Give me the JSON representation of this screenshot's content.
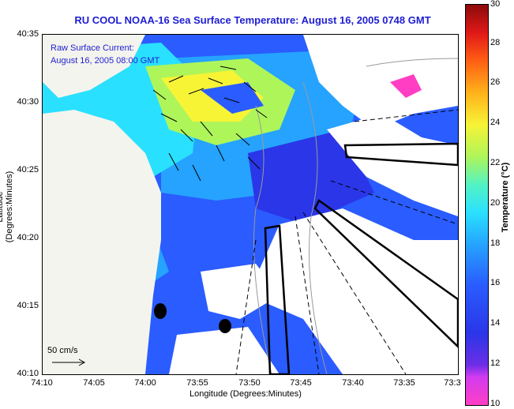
{
  "title": "RU COOL  NOAA-16  Sea Surface Temperature:  August 16, 2005 0748 GMT",
  "legend": {
    "line1": "Raw Surface Current:",
    "line2": "August 16, 2005 08:00 GMT"
  },
  "axes": {
    "xlabel": "Longitude (Degrees:Minutes)",
    "ylabel": "Latitude (Degrees:Minutes)",
    "x_ticks": [
      "74:10",
      "74:05",
      "74:00",
      "73:55",
      "73:50",
      "73:45",
      "73:40",
      "73:35",
      "73:3"
    ],
    "y_ticks": [
      "40:35",
      "40:30",
      "40:25",
      "40:20",
      "40:15",
      "40:10"
    ]
  },
  "colorbar": {
    "label": "Temperature (°C)",
    "ticks": [
      "30",
      "28",
      "26",
      "24",
      "22",
      "20",
      "18",
      "16",
      "14",
      "12",
      "10"
    ],
    "min": 10,
    "max": 30
  },
  "scale": {
    "label": "50 cm/s"
  },
  "colors": {
    "title": "#1e1ed2",
    "land": "#f4f4ee",
    "cloud": "#ffffff",
    "warm": "#f7f436",
    "cool": "#2a5cff"
  }
}
